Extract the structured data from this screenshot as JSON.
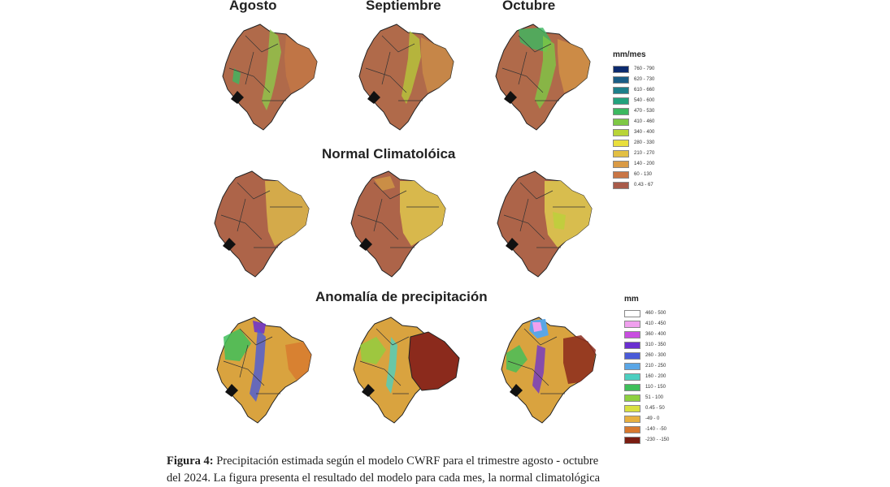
{
  "headers": {
    "agosto": "Agosto",
    "septiembre": "Septiembre",
    "octubre": "Octubre",
    "normal": "Normal Climatolóica",
    "anomalia": "Anomalía de precipitación"
  },
  "legend_precip": {
    "title": "mm/mes",
    "items": [
      {
        "label": "760 - 790",
        "color": "#0b2a6e"
      },
      {
        "label": "620 - 730",
        "color": "#1a5d86"
      },
      {
        "label": "610 - 660",
        "color": "#1d7f8a"
      },
      {
        "label": "540 - 600",
        "color": "#23a27d"
      },
      {
        "label": "470 - 530",
        "color": "#3cb860"
      },
      {
        "label": "410 - 460",
        "color": "#7ec845"
      },
      {
        "label": "340 - 400",
        "color": "#b8d438"
      },
      {
        "label": "280 - 330",
        "color": "#e9df3c"
      },
      {
        "label": "210 - 270",
        "color": "#e2bf43"
      },
      {
        "label": "140 - 200",
        "color": "#d99a45"
      },
      {
        "label": "60 - 130",
        "color": "#c87545"
      },
      {
        "label": "0.43 - 67",
        "color": "#a85b4a"
      }
    ]
  },
  "legend_anom": {
    "title": "mm",
    "items": [
      {
        "label": "460 - 500",
        "color": "#ffffff"
      },
      {
        "label": "410 - 450",
        "color": "#f0a0ee"
      },
      {
        "label": "360 - 400",
        "color": "#c84ee0"
      },
      {
        "label": "310 - 350",
        "color": "#6a2fd0"
      },
      {
        "label": "260 - 300",
        "color": "#4a5ad8"
      },
      {
        "label": "210 - 250",
        "color": "#5aa6e6"
      },
      {
        "label": "160 - 200",
        "color": "#4ccfc0"
      },
      {
        "label": "110 - 150",
        "color": "#3fbf5a"
      },
      {
        "label": "51 - 100",
        "color": "#8ed040"
      },
      {
        "label": "0.45 - 50",
        "color": "#d9e040"
      },
      {
        "label": "-49 - 0",
        "color": "#e7b040"
      },
      {
        "label": "-140 - -50",
        "color": "#d7782e"
      },
      {
        "label": "-230 - -150",
        "color": "#7a1d12"
      }
    ]
  },
  "caption": {
    "label": "Figura 4:",
    "line1": "Precipitación estimada según el modelo CWRF para el trimestre agosto - octubre",
    "line2": "del 2024. La figura presenta el resultado del modelo para cada mes, la normal climatológica"
  }
}
